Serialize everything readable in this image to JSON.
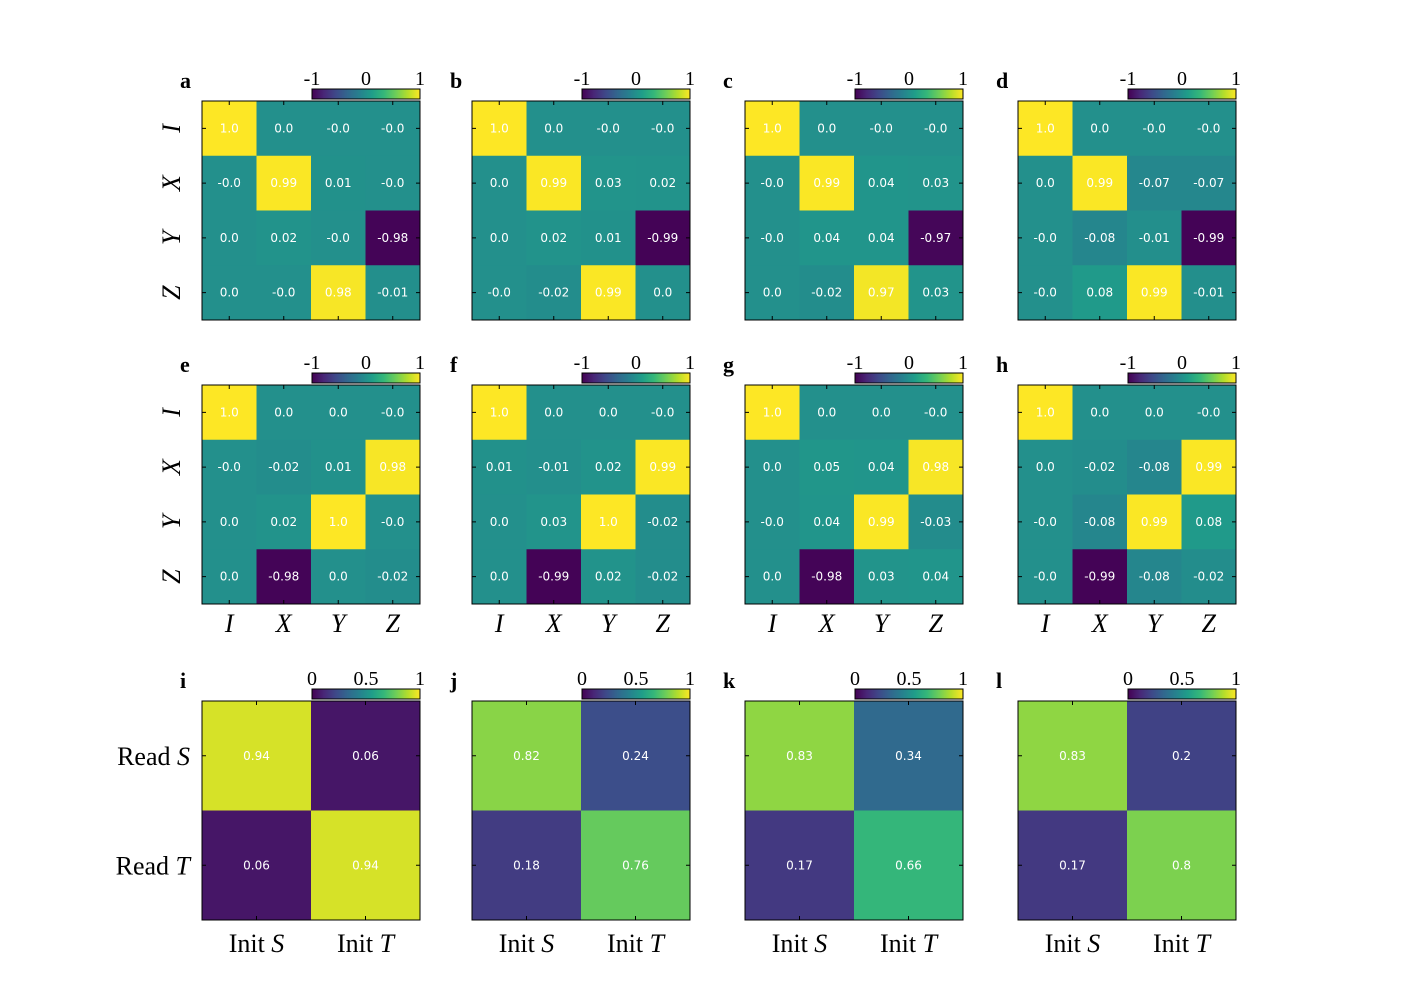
{
  "colors": {
    "colormap": [
      "#440154",
      "#482777",
      "#3e4989",
      "#31688e",
      "#26828e",
      "#1f9e89",
      "#35b779",
      "#6ece58",
      "#b5de2b",
      "#fde725"
    ],
    "cell_text": "#ffffff",
    "frame": "#000000"
  },
  "pauli_labels": [
    "I",
    "X",
    "Y",
    "Z"
  ],
  "read_labels": [
    {
      "prefix": "Read ",
      "var": "S"
    },
    {
      "prefix": "Read ",
      "var": "T"
    }
  ],
  "init_labels": [
    {
      "prefix": "Init ",
      "var": "S"
    },
    {
      "prefix": "Init ",
      "var": "T"
    }
  ],
  "colorbar_pauli": {
    "ticks": [
      "-1",
      "0",
      "1"
    ],
    "range": [
      -1,
      1
    ]
  },
  "colorbar_readout": {
    "ticks": [
      "0",
      "0.5",
      "1"
    ],
    "range": [
      0,
      1
    ]
  },
  "chart_data": [
    {
      "panel": "a",
      "type": "heatmap",
      "row": 0,
      "col": 0,
      "vmin": -1,
      "vmax": 1,
      "values": [
        [
          1.0,
          0.0,
          -0.0,
          -0.0
        ],
        [
          -0.0,
          0.99,
          0.01,
          -0.0
        ],
        [
          0.0,
          0.02,
          -0.0,
          -0.98
        ],
        [
          0.0,
          -0.0,
          0.98,
          -0.01
        ]
      ],
      "labels": [
        [
          "1.0",
          "0.0",
          "-0.0",
          "-0.0"
        ],
        [
          "-0.0",
          "0.99",
          "0.01",
          "-0.0"
        ],
        [
          "0.0",
          "0.02",
          "-0.0",
          "-0.98"
        ],
        [
          "0.0",
          "-0.0",
          "0.98",
          "-0.01"
        ]
      ]
    },
    {
      "panel": "b",
      "type": "heatmap",
      "row": 0,
      "col": 1,
      "vmin": -1,
      "vmax": 1,
      "values": [
        [
          1.0,
          0.0,
          -0.0,
          -0.0
        ],
        [
          0.0,
          0.99,
          0.03,
          0.02
        ],
        [
          0.0,
          0.02,
          0.01,
          -0.99
        ],
        [
          -0.0,
          -0.02,
          0.99,
          0.0
        ]
      ],
      "labels": [
        [
          "1.0",
          "0.0",
          "-0.0",
          "-0.0"
        ],
        [
          "0.0",
          "0.99",
          "0.03",
          "0.02"
        ],
        [
          "0.0",
          "0.02",
          "0.01",
          "-0.99"
        ],
        [
          "-0.0",
          "-0.02",
          "0.99",
          "0.0"
        ]
      ]
    },
    {
      "panel": "c",
      "type": "heatmap",
      "row": 0,
      "col": 2,
      "vmin": -1,
      "vmax": 1,
      "values": [
        [
          1.0,
          0.0,
          -0.0,
          -0.0
        ],
        [
          -0.0,
          0.99,
          0.04,
          0.03
        ],
        [
          -0.0,
          0.04,
          0.04,
          -0.97
        ],
        [
          0.0,
          -0.02,
          0.97,
          0.03
        ]
      ],
      "labels": [
        [
          "1.0",
          "0.0",
          "-0.0",
          "-0.0"
        ],
        [
          "-0.0",
          "0.99",
          "0.04",
          "0.03"
        ],
        [
          "-0.0",
          "0.04",
          "0.04",
          "-0.97"
        ],
        [
          "0.0",
          "-0.02",
          "0.97",
          "0.03"
        ]
      ]
    },
    {
      "panel": "d",
      "type": "heatmap",
      "row": 0,
      "col": 3,
      "vmin": -1,
      "vmax": 1,
      "values": [
        [
          1.0,
          0.0,
          -0.0,
          -0.0
        ],
        [
          0.0,
          0.99,
          -0.07,
          -0.07
        ],
        [
          -0.0,
          -0.08,
          -0.01,
          -0.99
        ],
        [
          -0.0,
          0.08,
          0.99,
          -0.01
        ]
      ],
      "labels": [
        [
          "1.0",
          "0.0",
          "-0.0",
          "-0.0"
        ],
        [
          "0.0",
          "0.99",
          "-0.07",
          "-0.07"
        ],
        [
          "-0.0",
          "-0.08",
          "-0.01",
          "-0.99"
        ],
        [
          "-0.0",
          "0.08",
          "0.99",
          "-0.01"
        ]
      ]
    },
    {
      "panel": "e",
      "type": "heatmap",
      "row": 1,
      "col": 0,
      "vmin": -1,
      "vmax": 1,
      "values": [
        [
          1.0,
          0.0,
          0.0,
          -0.0
        ],
        [
          -0.0,
          -0.02,
          0.01,
          0.98
        ],
        [
          0.0,
          0.02,
          1.0,
          -0.0
        ],
        [
          0.0,
          -0.98,
          0.0,
          -0.02
        ]
      ],
      "labels": [
        [
          "1.0",
          "0.0",
          "0.0",
          "-0.0"
        ],
        [
          "-0.0",
          "-0.02",
          "0.01",
          "0.98"
        ],
        [
          "0.0",
          "0.02",
          "1.0",
          "-0.0"
        ],
        [
          "0.0",
          "-0.98",
          "0.0",
          "-0.02"
        ]
      ]
    },
    {
      "panel": "f",
      "type": "heatmap",
      "row": 1,
      "col": 1,
      "vmin": -1,
      "vmax": 1,
      "values": [
        [
          1.0,
          0.0,
          0.0,
          -0.0
        ],
        [
          0.01,
          -0.01,
          0.02,
          0.99
        ],
        [
          0.0,
          0.03,
          1.0,
          -0.02
        ],
        [
          0.0,
          -0.99,
          0.02,
          -0.02
        ]
      ],
      "labels": [
        [
          "1.0",
          "0.0",
          "0.0",
          "-0.0"
        ],
        [
          "0.01",
          "-0.01",
          "0.02",
          "0.99"
        ],
        [
          "0.0",
          "0.03",
          "1.0",
          "-0.02"
        ],
        [
          "0.0",
          "-0.99",
          "0.02",
          "-0.02"
        ]
      ]
    },
    {
      "panel": "g",
      "type": "heatmap",
      "row": 1,
      "col": 2,
      "vmin": -1,
      "vmax": 1,
      "values": [
        [
          1.0,
          0.0,
          0.0,
          -0.0
        ],
        [
          0.0,
          0.05,
          0.04,
          0.98
        ],
        [
          -0.0,
          0.04,
          0.99,
          -0.03
        ],
        [
          0.0,
          -0.98,
          0.03,
          0.04
        ]
      ],
      "labels": [
        [
          "1.0",
          "0.0",
          "0.0",
          "-0.0"
        ],
        [
          "0.0",
          "0.05",
          "0.04",
          "0.98"
        ],
        [
          "-0.0",
          "0.04",
          "0.99",
          "-0.03"
        ],
        [
          "0.0",
          "-0.98",
          "0.03",
          "0.04"
        ]
      ]
    },
    {
      "panel": "h",
      "type": "heatmap",
      "row": 1,
      "col": 3,
      "vmin": -1,
      "vmax": 1,
      "values": [
        [
          1.0,
          0.0,
          0.0,
          -0.0
        ],
        [
          0.0,
          -0.02,
          -0.08,
          0.99
        ],
        [
          -0.0,
          -0.08,
          0.99,
          0.08
        ],
        [
          -0.0,
          -0.99,
          -0.08,
          -0.02
        ]
      ],
      "labels": [
        [
          "1.0",
          "0.0",
          "0.0",
          "-0.0"
        ],
        [
          "0.0",
          "-0.02",
          "-0.08",
          "0.99"
        ],
        [
          "-0.0",
          "-0.08",
          "0.99",
          "0.08"
        ],
        [
          "-0.0",
          "-0.99",
          "-0.08",
          "-0.02"
        ]
      ]
    },
    {
      "panel": "i",
      "type": "heatmap",
      "row": 2,
      "col": 0,
      "vmin": 0,
      "vmax": 1,
      "values": [
        [
          0.94,
          0.06
        ],
        [
          0.06,
          0.94
        ]
      ],
      "labels": [
        [
          "0.94",
          "0.06"
        ],
        [
          "0.06",
          "0.94"
        ]
      ]
    },
    {
      "panel": "j",
      "type": "heatmap",
      "row": 2,
      "col": 1,
      "vmin": 0,
      "vmax": 1,
      "values": [
        [
          0.82,
          0.24
        ],
        [
          0.18,
          0.76
        ]
      ],
      "labels": [
        [
          "0.82",
          "0.24"
        ],
        [
          "0.18",
          "0.76"
        ]
      ]
    },
    {
      "panel": "k",
      "type": "heatmap",
      "row": 2,
      "col": 2,
      "vmin": 0,
      "vmax": 1,
      "values": [
        [
          0.83,
          0.34
        ],
        [
          0.17,
          0.66
        ]
      ],
      "labels": [
        [
          "0.83",
          "0.34"
        ],
        [
          "0.17",
          "0.66"
        ]
      ]
    },
    {
      "panel": "l",
      "type": "heatmap",
      "row": 2,
      "col": 3,
      "vmin": 0,
      "vmax": 1,
      "values": [
        [
          0.83,
          0.2
        ],
        [
          0.17,
          0.8
        ]
      ],
      "labels": [
        [
          "0.83",
          "0.2"
        ],
        [
          "0.17",
          "0.8"
        ]
      ]
    }
  ]
}
